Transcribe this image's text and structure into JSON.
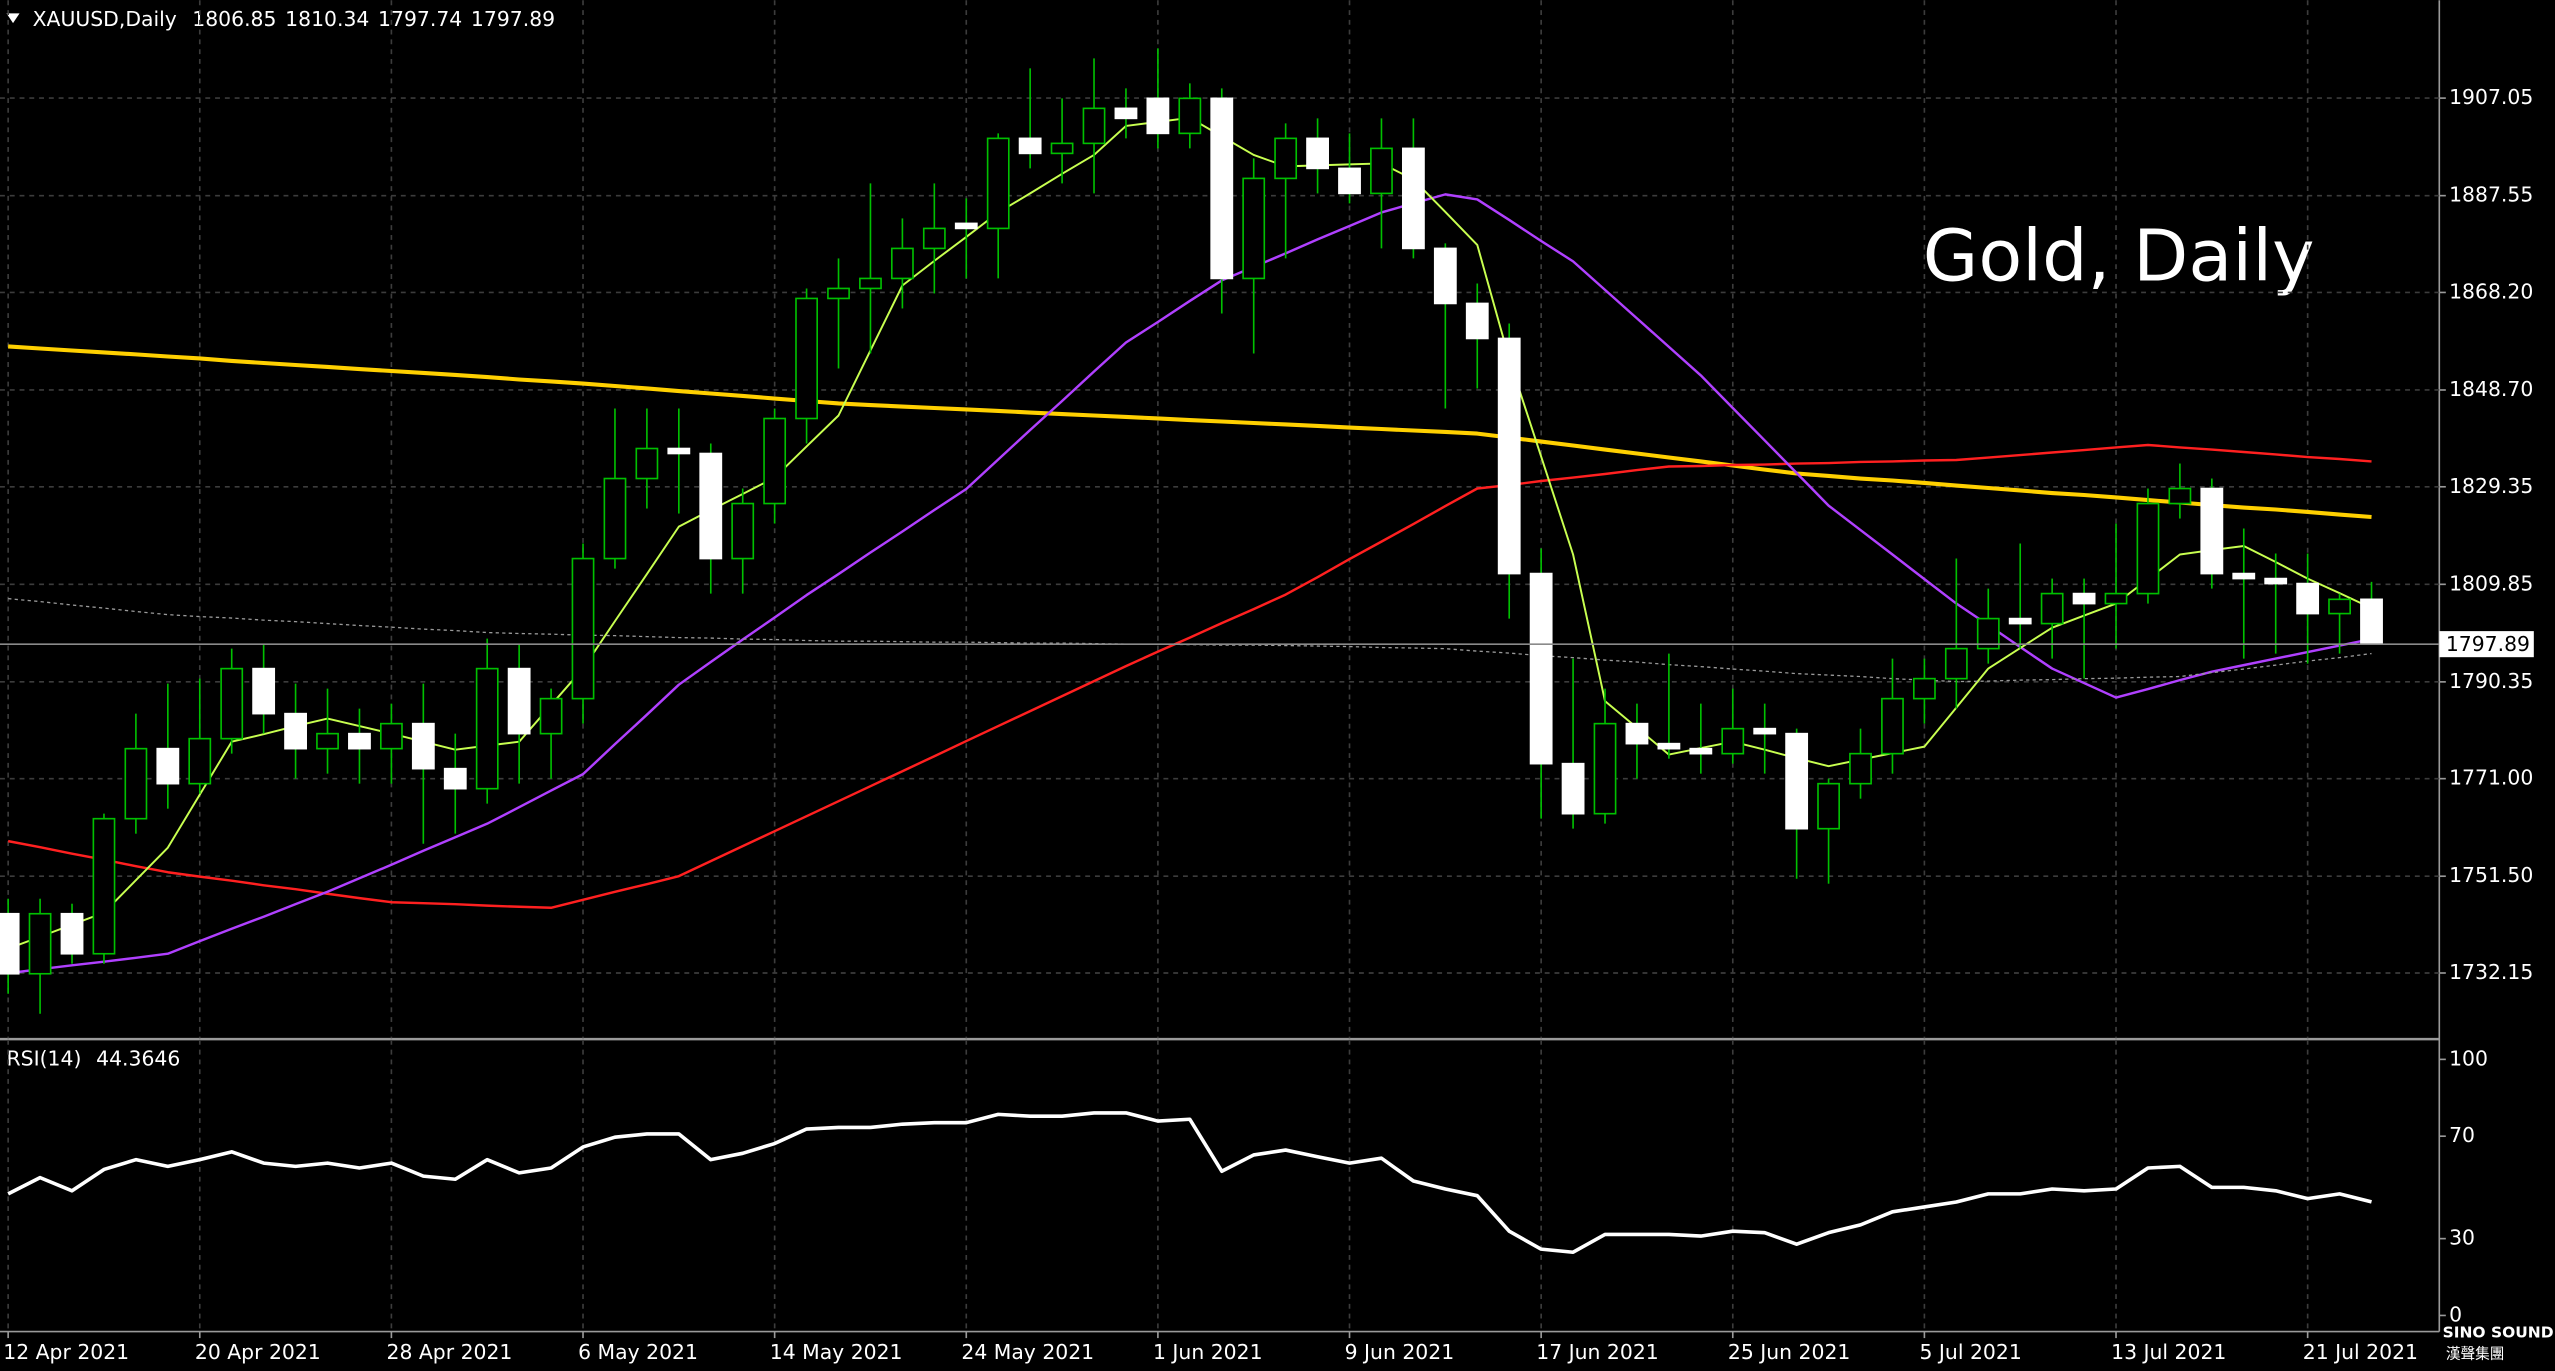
{
  "chart_data": {
    "type": "candlestick",
    "title": "XAUUSD,Daily",
    "last_ohlc": [
      1806.85,
      1810.34,
      1797.74,
      1797.89
    ],
    "watermark": "Gold, Daily",
    "current_price": 1797.89,
    "categories": [
      "12 Apr 2021",
      null,
      null,
      null,
      null,
      null,
      "20 Apr 2021",
      null,
      null,
      null,
      null,
      null,
      "28 Apr 2021",
      null,
      null,
      null,
      null,
      null,
      "6 May 2021",
      null,
      null,
      null,
      null,
      null,
      "14 May 2021",
      null,
      null,
      null,
      null,
      null,
      "24 May 2021",
      null,
      null,
      null,
      null,
      null,
      "1 Jun 2021",
      null,
      null,
      null,
      null,
      null,
      "9 Jun 2021",
      null,
      null,
      null,
      null,
      null,
      "17 Jun 2021",
      null,
      null,
      null,
      null,
      null,
      "25 Jun 2021",
      null,
      null,
      null,
      null,
      null,
      "5 Jul 2021",
      null,
      null,
      null,
      null,
      null,
      "13 Jul 2021",
      null,
      null,
      null,
      null,
      null,
      "21 Jul 2021",
      null,
      null
    ],
    "open": [
      1744,
      1732,
      1744,
      1736,
      1763,
      1777,
      1770,
      1779,
      1793,
      1784,
      1777,
      1780,
      1777,
      1782,
      1773,
      1769,
      1793,
      1780,
      1787,
      1815,
      1831,
      1837,
      1836,
      1815,
      1826,
      1843,
      1867,
      1869,
      1871,
      1877,
      1882,
      1881,
      1899,
      1896,
      1898,
      1905,
      1907,
      1900,
      1907,
      1871,
      1891,
      1899,
      1893,
      1888,
      1897,
      1877,
      1866,
      1859,
      1812,
      1774,
      1764,
      1782,
      1778,
      1777,
      1776,
      1781,
      1780,
      1761,
      1770,
      1776,
      1787,
      1791,
      1797,
      1803,
      1802,
      1808,
      1806,
      1808,
      1826,
      1829,
      1812,
      1811,
      1810,
      1804,
      1806.85
    ],
    "high": [
      1747,
      1747,
      1746,
      1764,
      1784,
      1790,
      1791,
      1797,
      1798,
      1790,
      1789,
      1785,
      1786,
      1790,
      1780,
      1799,
      1798,
      1789,
      1818,
      1845,
      1845,
      1845,
      1838,
      1829,
      1845,
      1869,
      1875,
      1890,
      1883,
      1890,
      1887,
      1900,
      1913,
      1907,
      1915,
      1909,
      1917,
      1910,
      1909,
      1895,
      1902,
      1903,
      1900,
      1903,
      1903,
      1878,
      1870,
      1862,
      1817,
      1795,
      1789,
      1786,
      1796,
      1786,
      1789,
      1786,
      1781,
      1771,
      1781,
      1795,
      1795,
      1815,
      1809,
      1818,
      1811,
      1811,
      1822,
      1829,
      1834,
      1831,
      1821,
      1816,
      1816,
      1808,
      1810.34
    ],
    "low": [
      1728,
      1724,
      1734,
      1734,
      1760,
      1765,
      1768,
      1776,
      1780,
      1771,
      1772,
      1770,
      1770,
      1758,
      1760,
      1766,
      1770,
      1771,
      1782,
      1813,
      1825,
      1824,
      1808,
      1808,
      1822,
      1838,
      1853,
      1856,
      1865,
      1868,
      1871,
      1871,
      1893,
      1890,
      1888,
      1899,
      1897,
      1897,
      1864,
      1856,
      1875,
      1888,
      1886,
      1877,
      1875,
      1845,
      1849,
      1803,
      1763,
      1761,
      1762,
      1771,
      1775,
      1772,
      1774,
      1772,
      1751,
      1750,
      1767,
      1772,
      1782,
      1785,
      1794,
      1797,
      1795,
      1791,
      1797,
      1806,
      1823,
      1809,
      1795,
      1796,
      1794,
      1796,
      1797.74
    ],
    "close": [
      1732,
      1744,
      1736,
      1763,
      1777,
      1770,
      1779,
      1793,
      1784,
      1777,
      1780,
      1777,
      1782,
      1773,
      1769,
      1793,
      1780,
      1787,
      1815,
      1831,
      1837,
      1836,
      1815,
      1826,
      1843,
      1867,
      1869,
      1871,
      1877,
      1881,
      1881,
      1899,
      1896,
      1898,
      1905,
      1903,
      1900,
      1907,
      1871,
      1891,
      1899,
      1893,
      1888,
      1897,
      1877,
      1866,
      1859,
      1812,
      1774,
      1764,
      1782,
      1778,
      1777,
      1776,
      1781,
      1780,
      1761,
      1770,
      1776,
      1787,
      1791,
      1797,
      1803,
      1802,
      1808,
      1806,
      1808,
      1826,
      1829,
      1812,
      1811,
      1810,
      1804,
      1806.85,
      1797.89
    ],
    "up_color": "#00c000",
    "up_fill": "#000000",
    "down_color": "#ffffff",
    "wick_color": "#00c000",
    "ylim": [
      1719.1,
      1926.6
    ],
    "yticks": [
      1732.15,
      {
        "value": 1751.5,
        "label": "1751.50"
      },
      {
        "value": 1771,
        "label": "1771.00"
      },
      1790.35,
      1809.85,
      1829.35,
      {
        "value": 1848.7,
        "label": "1848.70"
      },
      {
        "value": 1868.2,
        "label": "1868.20"
      },
      1887.55,
      1907.05
    ],
    "grid": true,
    "lines": [
      {
        "color": "#ffd000",
        "width": 2.5,
        "values": [
          1857.4,
          1857.0,
          1856.6,
          1856.2,
          1855.8,
          1855.4,
          1855.0,
          1854.5,
          1854.1,
          1853.7,
          1853.3,
          1852.9,
          1852.5,
          1852.1,
          1851.7,
          1851.3,
          1850.8,
          1850.4,
          1850.0,
          1849.5,
          1849.0,
          1848.5,
          1848.0,
          1847.5,
          1847.0,
          1846.5,
          1846.0,
          1845.7,
          1845.4,
          1845.1,
          1844.8,
          1844.5,
          1844.2,
          1843.9,
          1843.6,
          1843.3,
          1843.0,
          1842.7,
          1842.4,
          1842.1,
          1841.8,
          1841.5,
          1841.2,
          1840.9,
          1840.6,
          1840.3,
          1840.0,
          1839.2,
          1838.4,
          1837.6,
          1836.8,
          1836.0,
          1835.2,
          1834.4,
          1833.6,
          1832.8,
          1832.0,
          1831.5,
          1831.0,
          1830.6,
          1830.1,
          1829.6,
          1829.1,
          1828.6,
          1828.1,
          1827.7,
          1827.2,
          1826.7,
          1826.2,
          1825.7,
          1825.2,
          1824.8,
          1824.3,
          1823.8,
          1823.3
        ]
      },
      {
        "color": "#ff2020",
        "width": 1.5,
        "values": [
          1758.5,
          1757.3,
          1756.0,
          1754.8,
          1753.5,
          1752.3,
          1751.4,
          1750.6,
          1749.7,
          1748.9,
          1748.0,
          1747.1,
          1746.3,
          1746.1,
          1745.9,
          1745.6,
          1745.4,
          1745.2,
          1746.8,
          1748.4,
          1749.9,
          1751.5,
          1754.5,
          1757.5,
          1760.5,
          1763.5,
          1766.5,
          1769.5,
          1772.5,
          1775.5,
          1778.5,
          1781.5,
          1784.5,
          1787.5,
          1790.5,
          1793.5,
          1796.4,
          1799.2,
          1802.1,
          1804.9,
          1807.8,
          1811.3,
          1814.9,
          1818.4,
          1821.9,
          1825.5,
          1829.0,
          1829.7,
          1830.5,
          1831.2,
          1831.9,
          1832.7,
          1833.4,
          1833.5,
          1833.7,
          1833.8,
          1834.0,
          1834.1,
          1834.3,
          1834.4,
          1834.6,
          1834.7,
          1835.2,
          1835.7,
          1836.2,
          1836.7,
          1837.2,
          1837.7,
          1837.2,
          1836.8,
          1836.3,
          1835.8,
          1835.3,
          1834.9,
          1834.4
        ]
      },
      {
        "color": "#b040ff",
        "width": 1.5,
        "values": [
          1732.1,
          1732.9,
          1733.7,
          1734.4,
          1735.2,
          1736.0,
          1738.5,
          1741.0,
          1743.4,
          1745.9,
          1748.4,
          1751.1,
          1753.8,
          1756.6,
          1759.3,
          1762.0,
          1765.3,
          1768.6,
          1771.9,
          1777.9,
          1783.8,
          1789.8,
          1794.3,
          1798.8,
          1803.2,
          1807.7,
          1811.9,
          1816.2,
          1820.4,
          1824.7,
          1828.9,
          1834.8,
          1840.7,
          1846.5,
          1852.4,
          1858.2,
          1862.3,
          1866.5,
          1870.6,
          1873.3,
          1876.0,
          1878.8,
          1881.5,
          1884.2,
          1886.0,
          1887.8,
          1886.8,
          1882.7,
          1878.5,
          1874.4,
          1868.7,
          1863.0,
          1857.3,
          1851.6,
          1845.1,
          1838.6,
          1832.1,
          1825.6,
          1820.7,
          1815.8,
          1810.9,
          1806.0,
          1801.7,
          1797.3,
          1793.0,
          1790.1,
          1787.2,
          1788.9,
          1790.7,
          1792.4,
          1793.7,
          1795.0,
          1796.3,
          1797.6,
          1798.9
        ]
      },
      {
        "color": "#c8ff50",
        "width": 1.2,
        "values": [
          1737.0,
          1739.4,
          1741.8,
          1744.2,
          1750.7,
          1757.2,
          1767.8,
          1778.4,
          1779.9,
          1781.5,
          1783.0,
          1781.5,
          1780.0,
          1778.4,
          1776.8,
          1777.6,
          1778.4,
          1785.7,
          1793.0,
          1802.5,
          1811.9,
          1821.4,
          1824.7,
          1827.9,
          1831.2,
          1837.4,
          1843.6,
          1856.6,
          1869.6,
          1874.5,
          1879.3,
          1884.2,
          1888.0,
          1891.9,
          1895.7,
          1901.5,
          1902.3,
          1903.1,
          1899.4,
          1895.7,
          1893.4,
          1893.6,
          1893.8,
          1894.0,
          1890.8,
          1884.3,
          1877.7,
          1854.9,
          1835.4,
          1815.8,
          1786.5,
          1781.2,
          1775.8,
          1777.1,
          1778.4,
          1776.8,
          1775.1,
          1773.5,
          1774.8,
          1776.1,
          1777.4,
          1785.2,
          1793.0,
          1797.1,
          1801.2,
          1803.6,
          1806.0,
          1810.9,
          1815.8,
          1816.7,
          1817.5,
          1814.3,
          1811.0,
          1808.1,
          1805.1
        ]
      },
      {
        "color": "#9a9a9a",
        "width": 0.8,
        "dashed": true,
        "values": [
          1807.0,
          1806.4,
          1805.7,
          1805.1,
          1804.4,
          1803.8,
          1803.4,
          1803.1,
          1802.7,
          1802.4,
          1802.0,
          1801.6,
          1801.3,
          1800.9,
          1800.6,
          1800.2,
          1800.0,
          1799.9,
          1799.7,
          1799.6,
          1799.4,
          1799.2,
          1799.1,
          1798.9,
          1798.8,
          1798.6,
          1798.5,
          1798.5,
          1798.4,
          1798.3,
          1798.3,
          1798.2,
          1798.1,
          1798.1,
          1798.0,
          1797.9,
          1797.9,
          1797.8,
          1797.7,
          1797.7,
          1797.6,
          1797.5,
          1797.4,
          1797.2,
          1797.1,
          1797.0,
          1796.5,
          1796.1,
          1795.6,
          1795.2,
          1794.7,
          1794.3,
          1793.8,
          1793.4,
          1792.9,
          1792.5,
          1792.0,
          1791.7,
          1791.4,
          1791.0,
          1790.7,
          1790.4,
          1790.5,
          1790.7,
          1790.8,
          1791.0,
          1791.1,
          1791.3,
          1791.4,
          1792.2,
          1792.9,
          1793.7,
          1794.5,
          1795.2,
          1796.0
        ]
      }
    ],
    "indicator": {
      "type": "line",
      "name": "RSI(14)",
      "value": 44.3646,
      "color": "#ffffff",
      "ylim": [
        -6.3,
        107.6
      ],
      "yticks": [
        0,
        30,
        70,
        100
      ],
      "values": [
        47.5,
        53.8,
        48.7,
        57.0,
        60.8,
        58.2,
        60.8,
        63.9,
        59.5,
        58.2,
        59.5,
        57.6,
        59.5,
        54.4,
        53.2,
        60.8,
        55.7,
        57.6,
        65.8,
        69.6,
        70.9,
        70.9,
        60.8,
        63.3,
        67.1,
        72.8,
        73.4,
        73.4,
        74.7,
        75.3,
        75.3,
        78.5,
        77.8,
        77.8,
        79.1,
        79.1,
        75.9,
        76.6,
        56.3,
        62.7,
        64.6,
        62.0,
        59.5,
        61.4,
        52.5,
        49.4,
        46.8,
        32.9,
        25.9,
        24.7,
        31.6,
        31.6,
        31.6,
        31.0,
        32.9,
        32.3,
        27.8,
        32.3,
        35.4,
        40.5,
        42.4,
        44.3,
        47.5,
        47.5,
        49.4,
        48.7,
        49.4,
        57.6,
        58.2,
        50.0,
        50.0,
        48.7,
        45.6,
        47.5,
        44.3646
      ]
    },
    "logo": {
      "name": "SINO SOUND",
      "chinese": "漢聲集團"
    }
  }
}
